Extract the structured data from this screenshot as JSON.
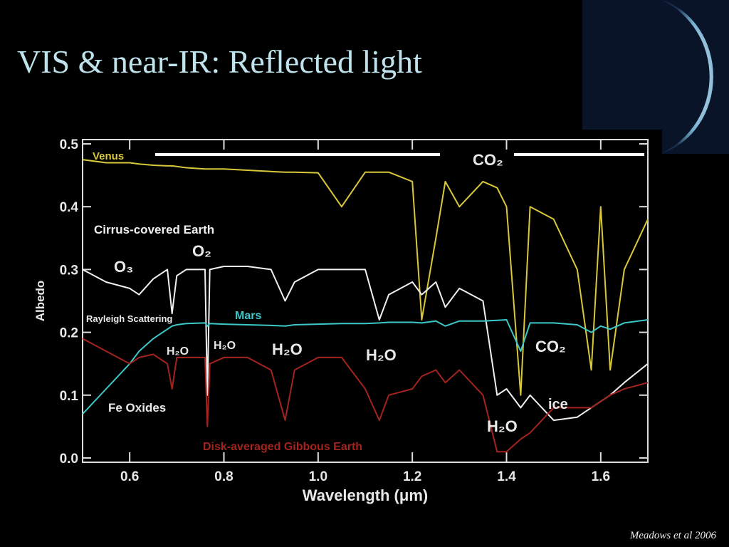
{
  "slide": {
    "title": "VIS & near-IR: Reflected light",
    "credit": "Meadows et al 2006"
  },
  "chart_data": {
    "type": "line",
    "x_label": "Wavelength (μm)",
    "y_label": "Albedo",
    "xlim": [
      0.5,
      1.7
    ],
    "ylim": [
      0,
      0.5
    ],
    "xticks": [
      0.6,
      0.8,
      {
        "value": 1.0,
        "label": "1.0"
      },
      1.2,
      1.4,
      1.6
    ],
    "yticks": [
      {
        "value": 0,
        "label": "0.0"
      },
      0.1,
      0.2,
      0.3,
      0.4,
      0.5
    ],
    "x": [
      0.5,
      0.55,
      0.6,
      0.62,
      0.65,
      0.68,
      0.69,
      0.7,
      0.72,
      0.76,
      0.765,
      0.77,
      0.8,
      0.85,
      0.9,
      0.93,
      0.95,
      1.0,
      1.05,
      1.1,
      1.13,
      1.15,
      1.2,
      1.22,
      1.25,
      1.27,
      1.3,
      1.35,
      1.38,
      1.4,
      1.43,
      1.45,
      1.5,
      1.55,
      1.58,
      1.6,
      1.62,
      1.65,
      1.7
    ],
    "series": [
      {
        "name": "Venus",
        "color": "#d8c83a",
        "values": [
          0.475,
          0.47,
          0.47,
          0.468,
          0.466,
          0.465,
          0.465,
          0.464,
          0.462,
          0.46,
          0.46,
          0.46,
          0.46,
          0.458,
          0.456,
          0.455,
          0.455,
          0.454,
          0.4,
          0.455,
          0.455,
          0.455,
          0.44,
          0.22,
          0.35,
          0.44,
          0.4,
          0.44,
          0.43,
          0.4,
          0.1,
          0.4,
          0.38,
          0.3,
          0.14,
          0.4,
          0.14,
          0.3,
          0.38
        ]
      },
      {
        "name": "Cirrus-covered Earth",
        "color": "#f0f0f0",
        "values": [
          0.3,
          0.28,
          0.27,
          0.26,
          0.285,
          0.3,
          0.23,
          0.29,
          0.3,
          0.3,
          0.1,
          0.3,
          0.305,
          0.305,
          0.3,
          0.25,
          0.28,
          0.3,
          0.3,
          0.3,
          0.22,
          0.26,
          0.28,
          0.26,
          0.28,
          0.24,
          0.27,
          0.25,
          0.1,
          0.11,
          0.08,
          0.1,
          0.06,
          0.065,
          0.08,
          0.09,
          0.1,
          0.12,
          0.15
        ]
      },
      {
        "name": "Mars",
        "color": "#3cc8c8",
        "values": [
          0.07,
          0.11,
          0.15,
          0.17,
          0.19,
          0.205,
          0.21,
          0.212,
          0.214,
          0.215,
          0.21,
          0.214,
          0.213,
          0.212,
          0.211,
          0.21,
          0.212,
          0.213,
          0.214,
          0.214,
          0.215,
          0.216,
          0.216,
          0.215,
          0.218,
          0.21,
          0.218,
          0.218,
          0.219,
          0.22,
          0.17,
          0.215,
          0.215,
          0.212,
          0.2,
          0.21,
          0.205,
          0.215,
          0.22
        ]
      },
      {
        "name": "Disk-averaged Gibbous Earth",
        "color": "#a3231e",
        "values": [
          0.19,
          0.17,
          0.15,
          0.16,
          0.165,
          0.15,
          0.11,
          0.16,
          0.16,
          0.16,
          0.05,
          0.15,
          0.16,
          0.16,
          0.14,
          0.06,
          0.14,
          0.16,
          0.16,
          0.11,
          0.06,
          0.1,
          0.11,
          0.13,
          0.14,
          0.12,
          0.14,
          0.1,
          0.01,
          0.01,
          0.03,
          0.04,
          0.08,
          0.08,
          0.08,
          0.09,
          0.1,
          0.11,
          0.12
        ]
      }
    ],
    "annotations": [
      "CO₂",
      "O₃",
      "O₂",
      "Rayleigh Scattering",
      "H₂O",
      "H₂O",
      "H₂O",
      "H₂O",
      "CO₂",
      "ice",
      "Fe Oxides",
      "H₂O"
    ]
  }
}
